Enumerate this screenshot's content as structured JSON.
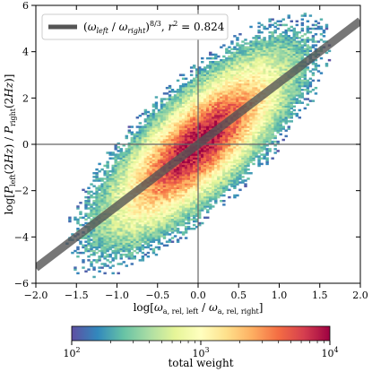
{
  "chart_data": {
    "type": "heatmap",
    "xlabel": "log[ω_{a, rel, left} / ω_{a, rel, right}]",
    "ylabel": "log[P_{left}(2Hz) / P_{right}(2Hz)]",
    "xlim": [
      -2.0,
      2.0
    ],
    "ylim": [
      -6,
      6
    ],
    "x_ticks": [
      -2.0,
      -1.5,
      -1.0,
      -0.5,
      0.0,
      0.5,
      1.0,
      1.5,
      2.0
    ],
    "x_tick_labels": [
      "−2.0",
      "−1.5",
      "−1.0",
      "−0.5",
      "0.0",
      "0.5",
      "1.0",
      "1.5",
      "2.0"
    ],
    "y_ticks": [
      -6,
      -4,
      -2,
      0,
      2,
      4,
      6
    ],
    "y_tick_labels": [
      "−6",
      "−4",
      "−2",
      "0",
      "2",
      "4",
      "6"
    ],
    "reference_lines": {
      "x": 0,
      "y": 0
    },
    "fit_line": {
      "label": "(ω_left / ω_right)^{8/3}, r² = 0.824",
      "slope": 2.6667,
      "intercept": 0,
      "color": "#555555"
    },
    "density": {
      "center_slope": 2.6667,
      "x_spread_sd": 0.5,
      "y_scatter_sd": 1.1,
      "peak_weight": 10000,
      "min_weight": 100
    },
    "colorbar": {
      "label": "total weight",
      "scale": "log",
      "range": [
        100,
        10000
      ],
      "ticks": [
        100,
        1000,
        10000
      ],
      "tick_labels": [
        "10",
        "10",
        "10"
      ],
      "tick_exponents": [
        "2",
        "3",
        "4"
      ],
      "colormap": [
        "#5e4fa2",
        "#3288bd",
        "#66c2a5",
        "#abdda4",
        "#e6f598",
        "#ffffbf",
        "#fee08b",
        "#fdae61",
        "#f46d43",
        "#d53e4f",
        "#9e0142"
      ]
    },
    "legend_placement": "top-left",
    "grid": false
  }
}
